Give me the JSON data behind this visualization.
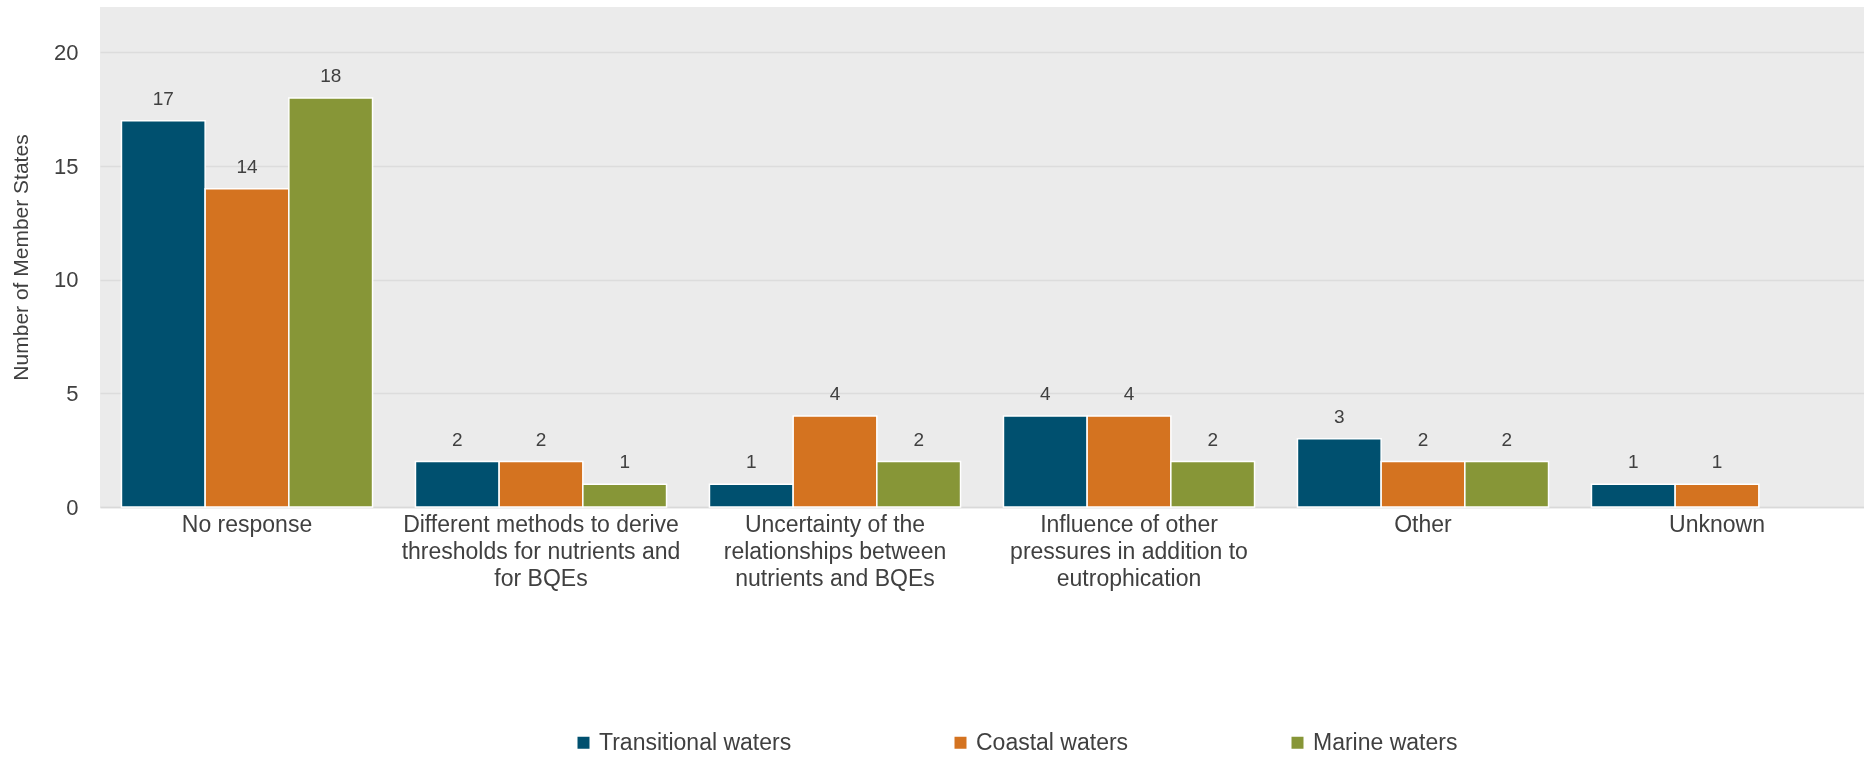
{
  "chart_data": {
    "type": "bar",
    "ylabel": "Number of Member States",
    "categories": [
      "No response",
      "Different methods to derive thresholds for nutrients and for BQEs",
      "Uncertainty of the relationships between nutrients and BQEs",
      "Influence of other pressures in addition to eutrophication",
      "Other",
      "Unknown"
    ],
    "series": [
      {
        "name": "Transitional waters",
        "color": "#00506f",
        "values": [
          17,
          2,
          1,
          4,
          3,
          1
        ]
      },
      {
        "name": "Coastal waters",
        "color": "#d47320",
        "values": [
          14,
          2,
          4,
          4,
          2,
          1
        ]
      },
      {
        "name": "Marine waters",
        "color": "#879637",
        "values": [
          18,
          1,
          2,
          2,
          2,
          null
        ]
      }
    ],
    "ylim": [
      0,
      22
    ],
    "yticks": [
      0,
      5,
      10,
      15,
      20
    ],
    "grid": "y",
    "legend": "bottom",
    "data_labels": true
  }
}
